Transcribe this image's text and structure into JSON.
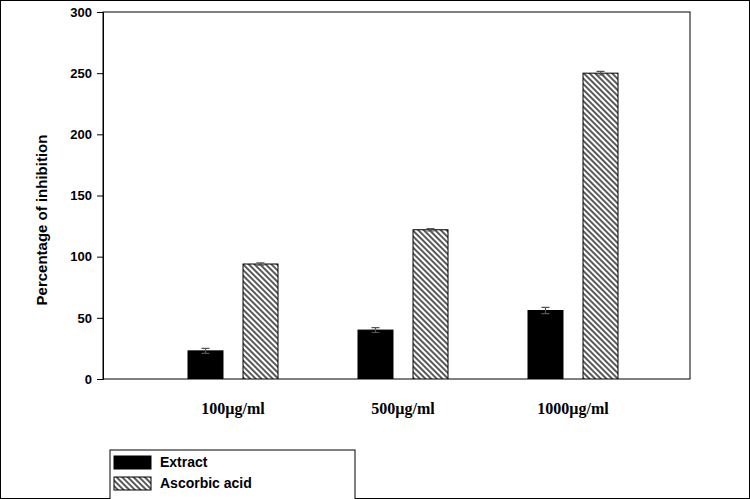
{
  "chart_data": {
    "type": "bar",
    "y_label": "Percentage of inhibition",
    "categories": [
      "100µg/ml",
      "500µg/ml",
      "1000µg/ml"
    ],
    "series": [
      {
        "name": "Extract",
        "color": "#000000",
        "values": [
          23,
          40,
          56
        ],
        "errors": [
          2,
          2,
          2.5
        ]
      },
      {
        "name": "Ascorbic acid",
        "color": "#000000",
        "values": [
          94,
          122,
          250
        ],
        "errors": [
          1,
          1,
          1.5
        ]
      }
    ],
    "ylim": [
      0,
      300
    ],
    "yticks": [
      0,
      50,
      100,
      150,
      200,
      250,
      300
    ],
    "legend": "bottom"
  }
}
